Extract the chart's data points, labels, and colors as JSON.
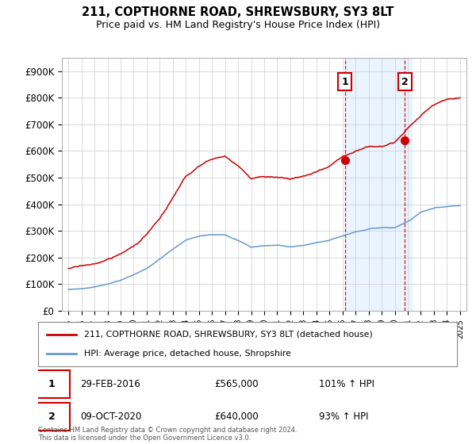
{
  "title": "211, COPTHORNE ROAD, SHREWSBURY, SY3 8LT",
  "subtitle": "Price paid vs. HM Land Registry's House Price Index (HPI)",
  "hpi_label": "HPI: Average price, detached house, Shropshire",
  "property_label": "211, COPTHORNE ROAD, SHREWSBURY, SY3 8LT (detached house)",
  "footnote": "Contains HM Land Registry data © Crown copyright and database right 2024.\nThis data is licensed under the Open Government Licence v3.0.",
  "transaction1": {
    "label": "1",
    "date": "29-FEB-2016",
    "price": "£565,000",
    "hpi_pct": "101% ↑ HPI",
    "year": 2016.17
  },
  "transaction2": {
    "label": "2",
    "date": "09-OCT-2020",
    "price": "£640,000",
    "hpi_pct": "93% ↑ HPI",
    "year": 2020.78
  },
  "t1_price": 565000,
  "t2_price": 640000,
  "property_color": "#cc0000",
  "hpi_color": "#6699cc",
  "shade_color": "#ddeeff",
  "grid_color": "#cccccc",
  "bg_color": "#ffffff",
  "ylim": [
    0,
    950000
  ],
  "yticks": [
    0,
    100000,
    200000,
    300000,
    400000,
    500000,
    600000,
    700000,
    800000,
    900000
  ],
  "ytick_labels": [
    "£0",
    "£100K",
    "£200K",
    "£300K",
    "£400K",
    "£500K",
    "£600K",
    "£700K",
    "£800K",
    "£900K"
  ],
  "xlim_start": 1994.5,
  "xlim_end": 2025.5,
  "prop_base_years": [
    1995,
    1996,
    1997,
    1998,
    1999,
    2000,
    2001,
    2002,
    2003,
    2004,
    2005,
    2006,
    2007,
    2008,
    2009,
    2010,
    2011,
    2012,
    2013,
    2014,
    2015,
    2016,
    2017,
    2018,
    2019,
    2020,
    2021,
    2022,
    2023,
    2024,
    2025
  ],
  "prop_base_vals": [
    160000,
    165000,
    175000,
    190000,
    210000,
    240000,
    285000,
    340000,
    415000,
    490000,
    530000,
    555000,
    570000,
    530000,
    480000,
    490000,
    490000,
    480000,
    490000,
    505000,
    525000,
    560000,
    585000,
    600000,
    610000,
    630000,
    680000,
    730000,
    770000,
    790000,
    800000
  ],
  "hpi_base_years": [
    1995,
    1996,
    1997,
    1998,
    1999,
    2000,
    2001,
    2002,
    2003,
    2004,
    2005,
    2006,
    2007,
    2008,
    2009,
    2010,
    2011,
    2012,
    2013,
    2014,
    2015,
    2016,
    2017,
    2018,
    2019,
    2020,
    2021,
    2022,
    2023,
    2024,
    2025
  ],
  "hpi_base_vals": [
    80000,
    84000,
    90000,
    100000,
    115000,
    135000,
    160000,
    195000,
    230000,
    265000,
    280000,
    285000,
    285000,
    265000,
    240000,
    245000,
    245000,
    240000,
    245000,
    255000,
    265000,
    280000,
    295000,
    305000,
    310000,
    310000,
    335000,
    370000,
    385000,
    390000,
    395000
  ]
}
